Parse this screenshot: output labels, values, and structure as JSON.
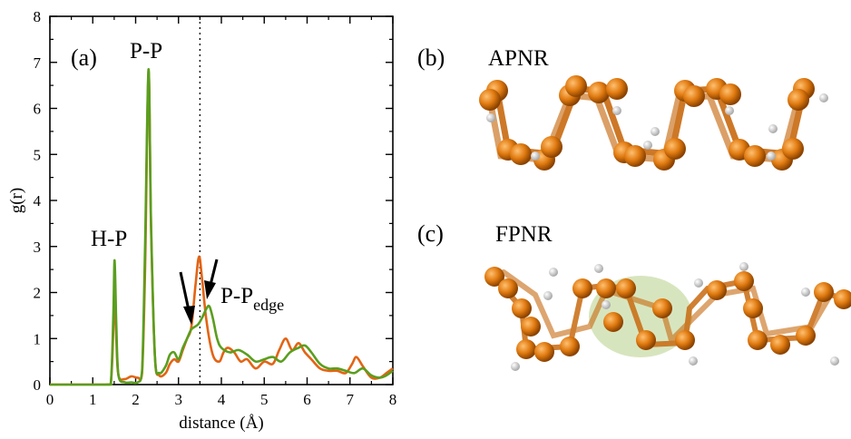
{
  "chart_data": {
    "type": "line",
    "panel_label": "(a)",
    "xlabel": "distance (Å)",
    "ylabel": "g(r)",
    "xlim": [
      0,
      8
    ],
    "ylim": [
      0,
      8
    ],
    "x_ticks": [
      "0",
      "1",
      "2",
      "3",
      "4",
      "5",
      "6",
      "7",
      "8"
    ],
    "y_ticks": [
      "0",
      "1",
      "2",
      "3",
      "4",
      "5",
      "6",
      "7",
      "8"
    ],
    "grid": false,
    "legend": null,
    "reference_line": {
      "x": 3.5,
      "style": "dotted"
    },
    "series": [
      {
        "color": "#e36414",
        "points": [
          [
            0,
            0
          ],
          [
            1.3,
            0
          ],
          [
            1.42,
            0.02
          ],
          [
            1.48,
            1.2
          ],
          [
            1.51,
            2.2
          ],
          [
            1.55,
            1.0
          ],
          [
            1.6,
            0.2
          ],
          [
            1.75,
            0.12
          ],
          [
            1.9,
            0.18
          ],
          [
            2.05,
            0.15
          ],
          [
            2.15,
            0.25
          ],
          [
            2.22,
            2.5
          ],
          [
            2.3,
            6.8
          ],
          [
            2.36,
            3.4
          ],
          [
            2.45,
            0.6
          ],
          [
            2.55,
            0.2
          ],
          [
            2.7,
            0.25
          ],
          [
            2.8,
            0.45
          ],
          [
            2.9,
            0.55
          ],
          [
            3.0,
            0.5
          ],
          [
            3.1,
            0.75
          ],
          [
            3.2,
            1.0
          ],
          [
            3.3,
            1.25
          ],
          [
            3.4,
            2.2
          ],
          [
            3.48,
            2.78
          ],
          [
            3.55,
            2.3
          ],
          [
            3.65,
            1.4
          ],
          [
            3.8,
            0.65
          ],
          [
            3.95,
            0.5
          ],
          [
            4.05,
            0.7
          ],
          [
            4.15,
            0.8
          ],
          [
            4.3,
            0.7
          ],
          [
            4.45,
            0.5
          ],
          [
            4.6,
            0.55
          ],
          [
            4.8,
            0.35
          ],
          [
            5.0,
            0.5
          ],
          [
            5.2,
            0.45
          ],
          [
            5.35,
            0.75
          ],
          [
            5.5,
            1.0
          ],
          [
            5.65,
            0.75
          ],
          [
            5.8,
            0.9
          ],
          [
            5.95,
            0.7
          ],
          [
            6.1,
            0.55
          ],
          [
            6.3,
            0.35
          ],
          [
            6.5,
            0.3
          ],
          [
            6.7,
            0.3
          ],
          [
            6.9,
            0.25
          ],
          [
            7.05,
            0.45
          ],
          [
            7.15,
            0.6
          ],
          [
            7.3,
            0.4
          ],
          [
            7.5,
            0.15
          ],
          [
            7.7,
            0.15
          ],
          [
            7.85,
            0.25
          ],
          [
            8.0,
            0.35
          ]
        ]
      },
      {
        "color": "#5a9e1e",
        "points": [
          [
            0,
            0
          ],
          [
            1.3,
            0
          ],
          [
            1.42,
            0.02
          ],
          [
            1.48,
            1.5
          ],
          [
            1.51,
            2.7
          ],
          [
            1.55,
            1.3
          ],
          [
            1.6,
            0.2
          ],
          [
            1.75,
            0.05
          ],
          [
            1.9,
            0.05
          ],
          [
            2.05,
            0.05
          ],
          [
            2.15,
            0.3
          ],
          [
            2.22,
            3.0
          ],
          [
            2.3,
            6.85
          ],
          [
            2.36,
            3.5
          ],
          [
            2.45,
            0.6
          ],
          [
            2.55,
            0.25
          ],
          [
            2.7,
            0.4
          ],
          [
            2.8,
            0.65
          ],
          [
            2.9,
            0.7
          ],
          [
            3.0,
            0.55
          ],
          [
            3.1,
            0.8
          ],
          [
            3.2,
            1.0
          ],
          [
            3.3,
            1.2
          ],
          [
            3.45,
            1.3
          ],
          [
            3.55,
            1.45
          ],
          [
            3.65,
            1.65
          ],
          [
            3.72,
            1.7
          ],
          [
            3.8,
            1.45
          ],
          [
            3.9,
            1.0
          ],
          [
            4.0,
            0.8
          ],
          [
            4.2,
            0.7
          ],
          [
            4.4,
            0.75
          ],
          [
            4.6,
            0.65
          ],
          [
            4.8,
            0.5
          ],
          [
            5.0,
            0.55
          ],
          [
            5.2,
            0.6
          ],
          [
            5.4,
            0.5
          ],
          [
            5.6,
            0.7
          ],
          [
            5.8,
            0.8
          ],
          [
            5.95,
            0.85
          ],
          [
            6.1,
            0.7
          ],
          [
            6.3,
            0.45
          ],
          [
            6.5,
            0.35
          ],
          [
            6.7,
            0.35
          ],
          [
            6.9,
            0.3
          ],
          [
            7.1,
            0.25
          ],
          [
            7.3,
            0.35
          ],
          [
            7.5,
            0.2
          ],
          [
            7.7,
            0.15
          ],
          [
            7.85,
            0.2
          ],
          [
            8.0,
            0.3
          ]
        ]
      }
    ],
    "annotations": {
      "hp": "H-P",
      "pp": "P-P",
      "ppedge_main": "P-P",
      "ppedge_sub": "edge"
    }
  },
  "panels": {
    "b": {
      "tag": "(b)",
      "title": "APNR"
    },
    "c": {
      "tag": "(c)",
      "title": "FPNR"
    }
  },
  "colors": {
    "phosphorus_atom": "#e07a10",
    "hydrogen_atom": "#e8e8e8",
    "highlight": "#c9dca8"
  }
}
